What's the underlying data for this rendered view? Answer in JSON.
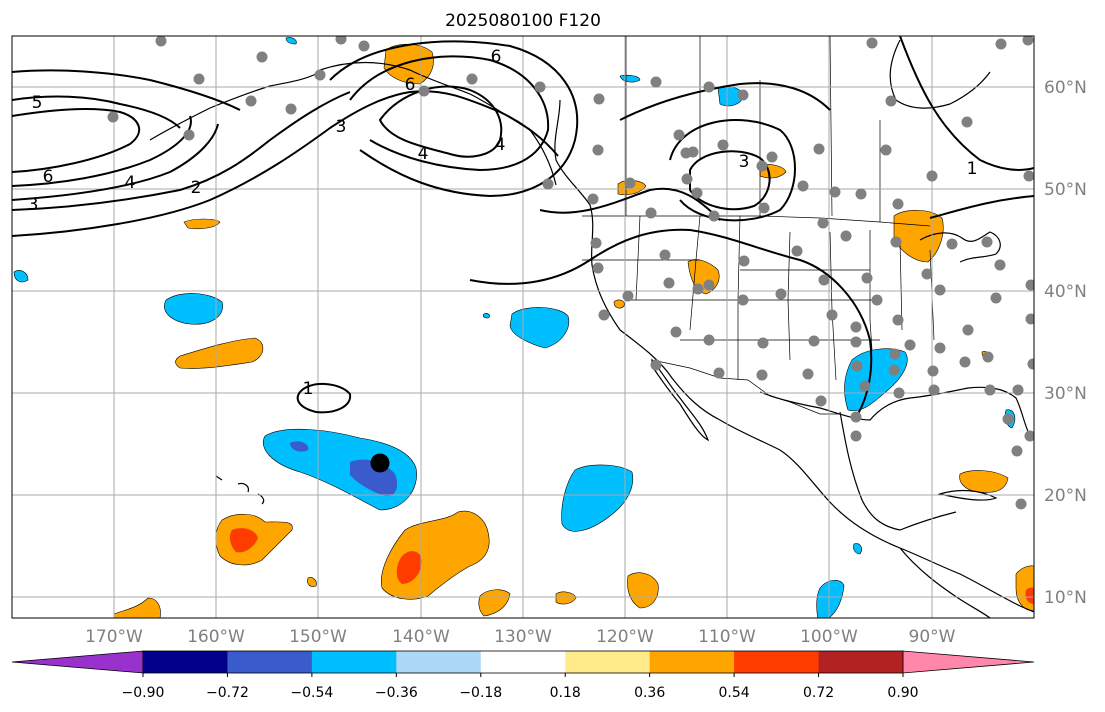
{
  "title": "2025080100 F120",
  "colors": {
    "purple": "#9932cc",
    "navy": "#00008b",
    "blue": "#3a5bcc",
    "cyan": "#00bfff",
    "light_blue": "#add8f6",
    "white": "#ffffff",
    "yellow": "#ffeb8a",
    "orange": "#ffa500",
    "red_orange": "#ff3c00",
    "dark_red": "#b22222",
    "pink": "#ff88aa",
    "grid": "#aaaaaa",
    "station": "#808080",
    "contour": "#000000"
  },
  "map": {
    "lon_range": [
      -180,
      -80
    ],
    "lat_range": [
      8,
      65
    ],
    "lon_labels": [
      "170°W",
      "160°W",
      "150°W",
      "140°W",
      "130°W",
      "120°W",
      "110°W",
      "100°W",
      "90°W"
    ],
    "lat_labels": [
      "10°N",
      "20°N",
      "30°N",
      "40°N",
      "50°N",
      "60°N"
    ],
    "contour_labels": [
      "5",
      "6",
      "3",
      "4",
      "2",
      "3",
      "6",
      "6",
      "4",
      "4",
      "3",
      "1",
      "1"
    ]
  },
  "colorbar": {
    "tick_labels": [
      "−0.90",
      "−0.72",
      "−0.54",
      "−0.36",
      "−0.18",
      "0.18",
      "0.36",
      "0.54",
      "0.72",
      "0.90"
    ],
    "segment_colors": [
      "#00008b",
      "#3a5bcc",
      "#00bfff",
      "#add8f6",
      "#ffffff",
      "#ffeb8a",
      "#ffa500",
      "#ff3c00",
      "#b22222"
    ],
    "under_color": "#9932cc",
    "over_color": "#ff88aa"
  }
}
